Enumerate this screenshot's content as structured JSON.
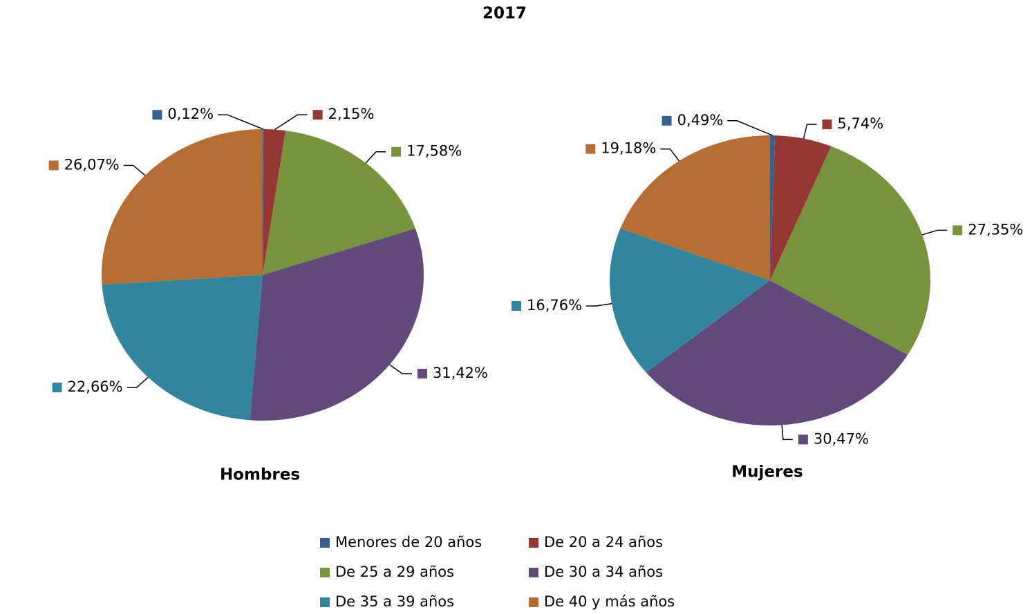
{
  "title": "2017",
  "categories": [
    "Menores de 20 años",
    "De 20 a 24 años",
    "De 25 a 29 años",
    "De 30 a 34 años",
    "De 35 a 39 años",
    "De 40 y más años"
  ],
  "colors": [
    "#376092",
    "#953735",
    "#77933c",
    "#604a7b",
    "#31859c",
    "#b66d31"
  ],
  "legend": "bottom",
  "chart_data": [
    {
      "type": "pie",
      "title": "Hombres",
      "values": [
        0.12,
        2.15,
        17.58,
        31.42,
        22.66,
        26.07
      ],
      "value_labels": [
        "0,12%",
        "2,15%",
        "17,58%",
        "31,42%",
        "22,66%",
        "26,07%"
      ]
    },
    {
      "type": "pie",
      "title": "Mujeres",
      "values": [
        0.49,
        5.74,
        27.35,
        30.47,
        16.76,
        19.18
      ],
      "value_labels": [
        "0,49%",
        "5,74%",
        "27,35%",
        "30,47%",
        "16,76%",
        "19,18%"
      ]
    }
  ]
}
